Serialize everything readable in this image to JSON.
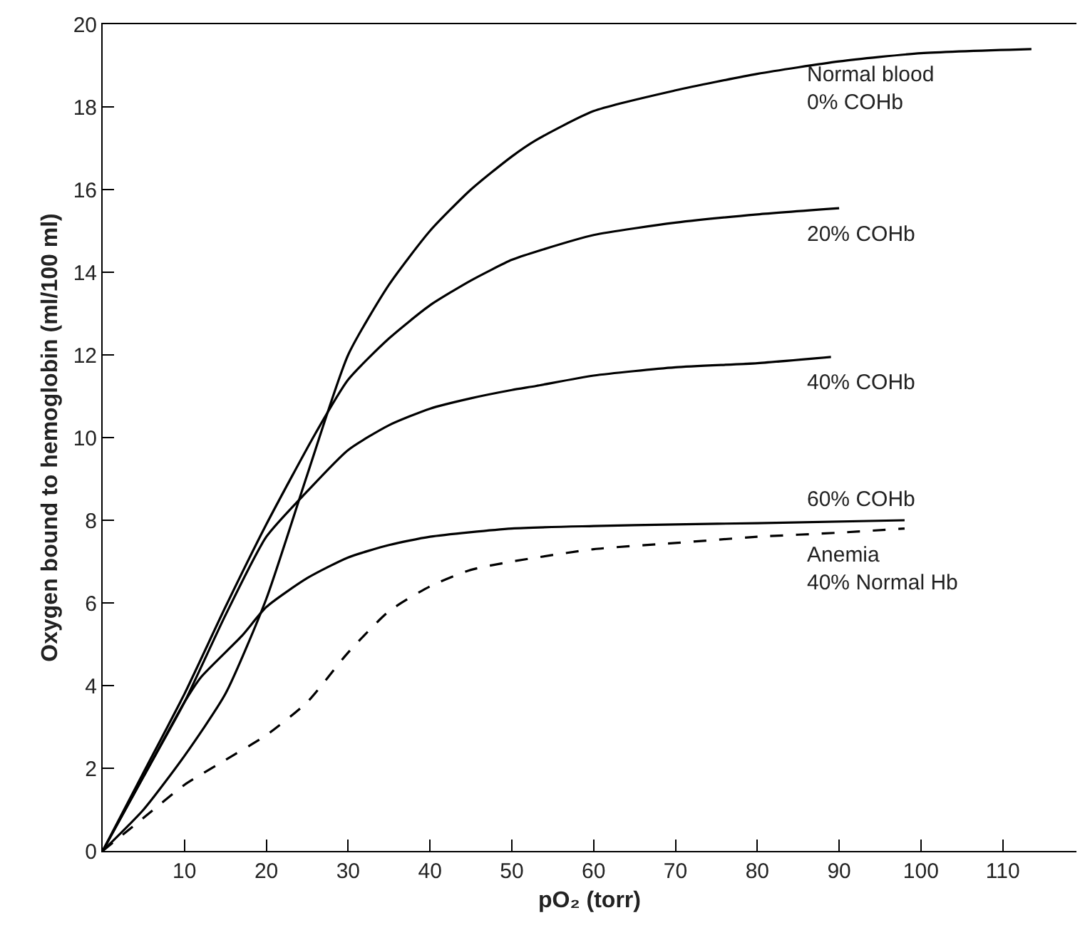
{
  "chart_data": {
    "type": "line",
    "xlabel": "pO₂ (torr)",
    "ylabel": "Oxygen bound to hemoglobin (ml/100 ml)",
    "xlim": [
      0,
      119
    ],
    "ylim": [
      0,
      20
    ],
    "xticks": [
      10,
      20,
      30,
      40,
      50,
      60,
      70,
      80,
      90,
      100,
      110
    ],
    "yticks": [
      0,
      2,
      4,
      6,
      8,
      10,
      12,
      14,
      16,
      18,
      20
    ],
    "legend": false,
    "marker": "none",
    "series": [
      {
        "name": "Normal blood\n0% COHb",
        "color": "#000000",
        "line_style": "solid",
        "x": [
          0,
          5,
          10,
          15,
          20,
          25,
          30,
          35,
          40,
          45,
          50,
          53,
          60,
          70,
          80,
          90,
          100,
          113.5
        ],
        "values": [
          0,
          1.0,
          2.3,
          3.8,
          6.1,
          9.1,
          12.0,
          13.7,
          15.0,
          16.0,
          16.8,
          17.2,
          17.9,
          18.4,
          18.8,
          19.1,
          19.3,
          19.4
        ]
      },
      {
        "name": "20% COHb",
        "color": "#000000",
        "line_style": "solid",
        "x": [
          0,
          5,
          10,
          15,
          20,
          26,
          30,
          35,
          40,
          45,
          50,
          53,
          60,
          70,
          80,
          90
        ],
        "values": [
          0,
          1.9,
          3.8,
          5.9,
          7.9,
          10.1,
          11.4,
          12.4,
          13.2,
          13.8,
          14.3,
          14.5,
          14.9,
          15.2,
          15.4,
          15.55
        ]
      },
      {
        "name": "40% COHb",
        "color": "#000000",
        "line_style": "solid",
        "x": [
          0,
          5,
          10,
          15,
          20,
          25,
          30,
          35,
          40,
          45,
          50,
          53,
          60,
          70,
          80,
          89
        ],
        "values": [
          0,
          1.8,
          3.6,
          5.7,
          7.6,
          8.7,
          9.7,
          10.3,
          10.7,
          10.95,
          11.15,
          11.25,
          11.5,
          11.7,
          11.8,
          11.95
        ]
      },
      {
        "name": "60% COHb",
        "color": "#000000",
        "line_style": "solid",
        "x": [
          0,
          5,
          10,
          12,
          17,
          20,
          25,
          30,
          35,
          40,
          50,
          60,
          70,
          80,
          98
        ],
        "values": [
          0,
          1.8,
          3.6,
          4.2,
          5.2,
          5.9,
          6.6,
          7.1,
          7.4,
          7.6,
          7.8,
          7.86,
          7.9,
          7.93,
          8.0
        ]
      },
      {
        "name": "Anemia\n40% Normal Hb",
        "color": "#000000",
        "line_style": "dashed",
        "x": [
          0,
          5,
          10,
          15,
          20,
          25,
          30,
          35,
          40,
          45,
          50,
          60,
          70,
          80,
          90,
          98
        ],
        "values": [
          0,
          0.8,
          1.6,
          2.2,
          2.8,
          3.6,
          4.8,
          5.8,
          6.4,
          6.8,
          7.0,
          7.3,
          7.45,
          7.6,
          7.7,
          7.8
        ]
      }
    ]
  }
}
